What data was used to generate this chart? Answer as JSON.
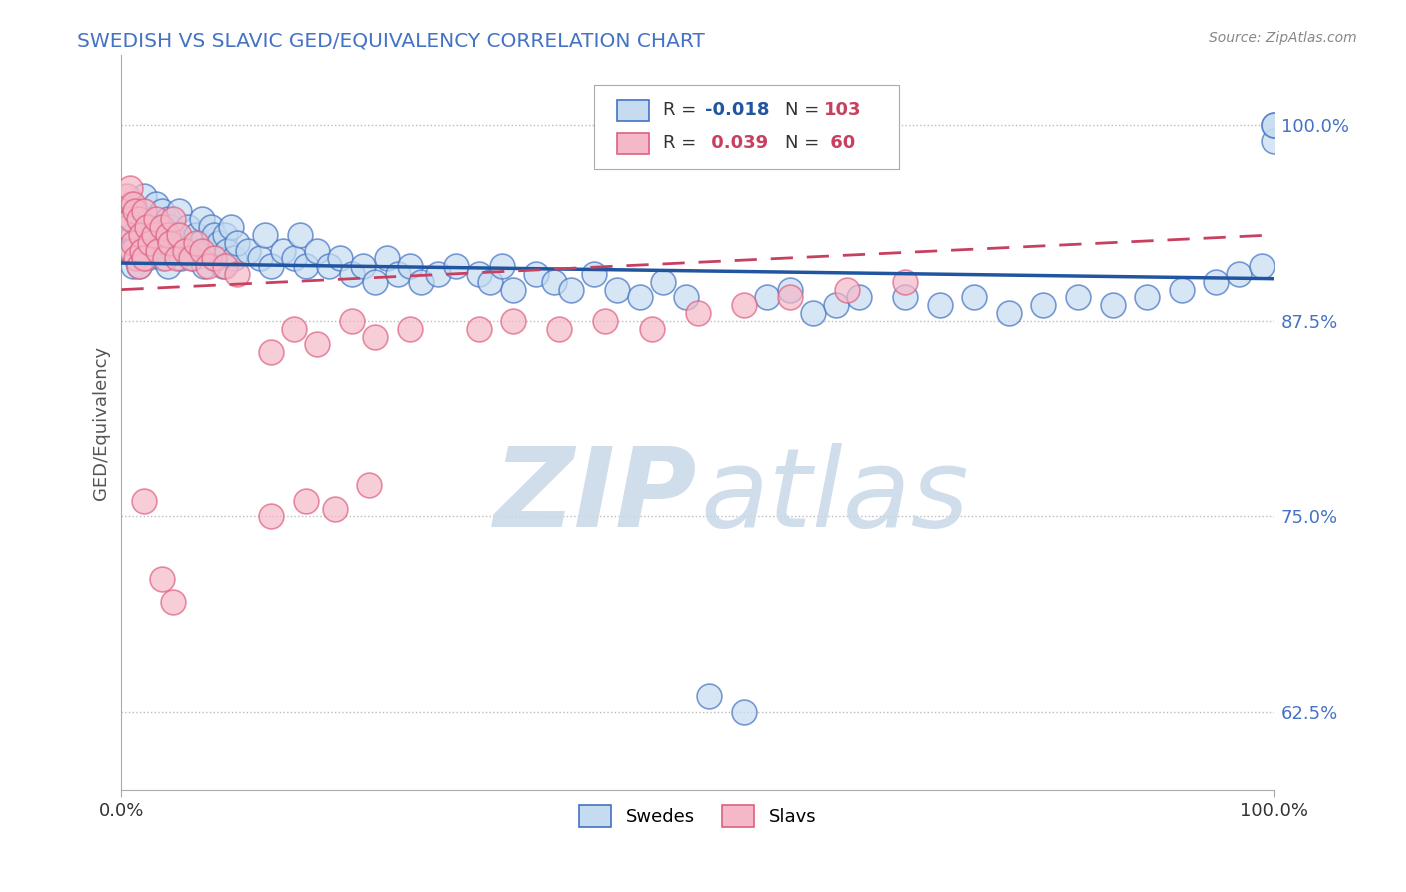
{
  "title": "SWEDISH VS SLAVIC GED/EQUIVALENCY CORRELATION CHART",
  "source": "Source: ZipAtlas.com",
  "ylabel": "GED/Equivalency",
  "legend_blue_label": "Swedes",
  "legend_pink_label": "Slavs",
  "blue_fill": "#c5dcf0",
  "blue_edge": "#4472c4",
  "pink_fill": "#f4b8c8",
  "pink_edge": "#e06080",
  "blue_line_color": "#2155a0",
  "pink_line_color": "#c84060",
  "background_color": "#ffffff",
  "title_color": "#4472c4",
  "R_blue_color": "#2155a0",
  "R_pink_color": "#c84060",
  "N_blue_color": "#c84060",
  "N_pink_color": "#c84060",
  "watermark_color": "#c8d8e8",
  "ytick_color": "#4472c4",
  "source_color": "#888888",
  "xlim": [
    0.0,
    1.0
  ],
  "ylim": [
    0.575,
    1.045
  ]
}
